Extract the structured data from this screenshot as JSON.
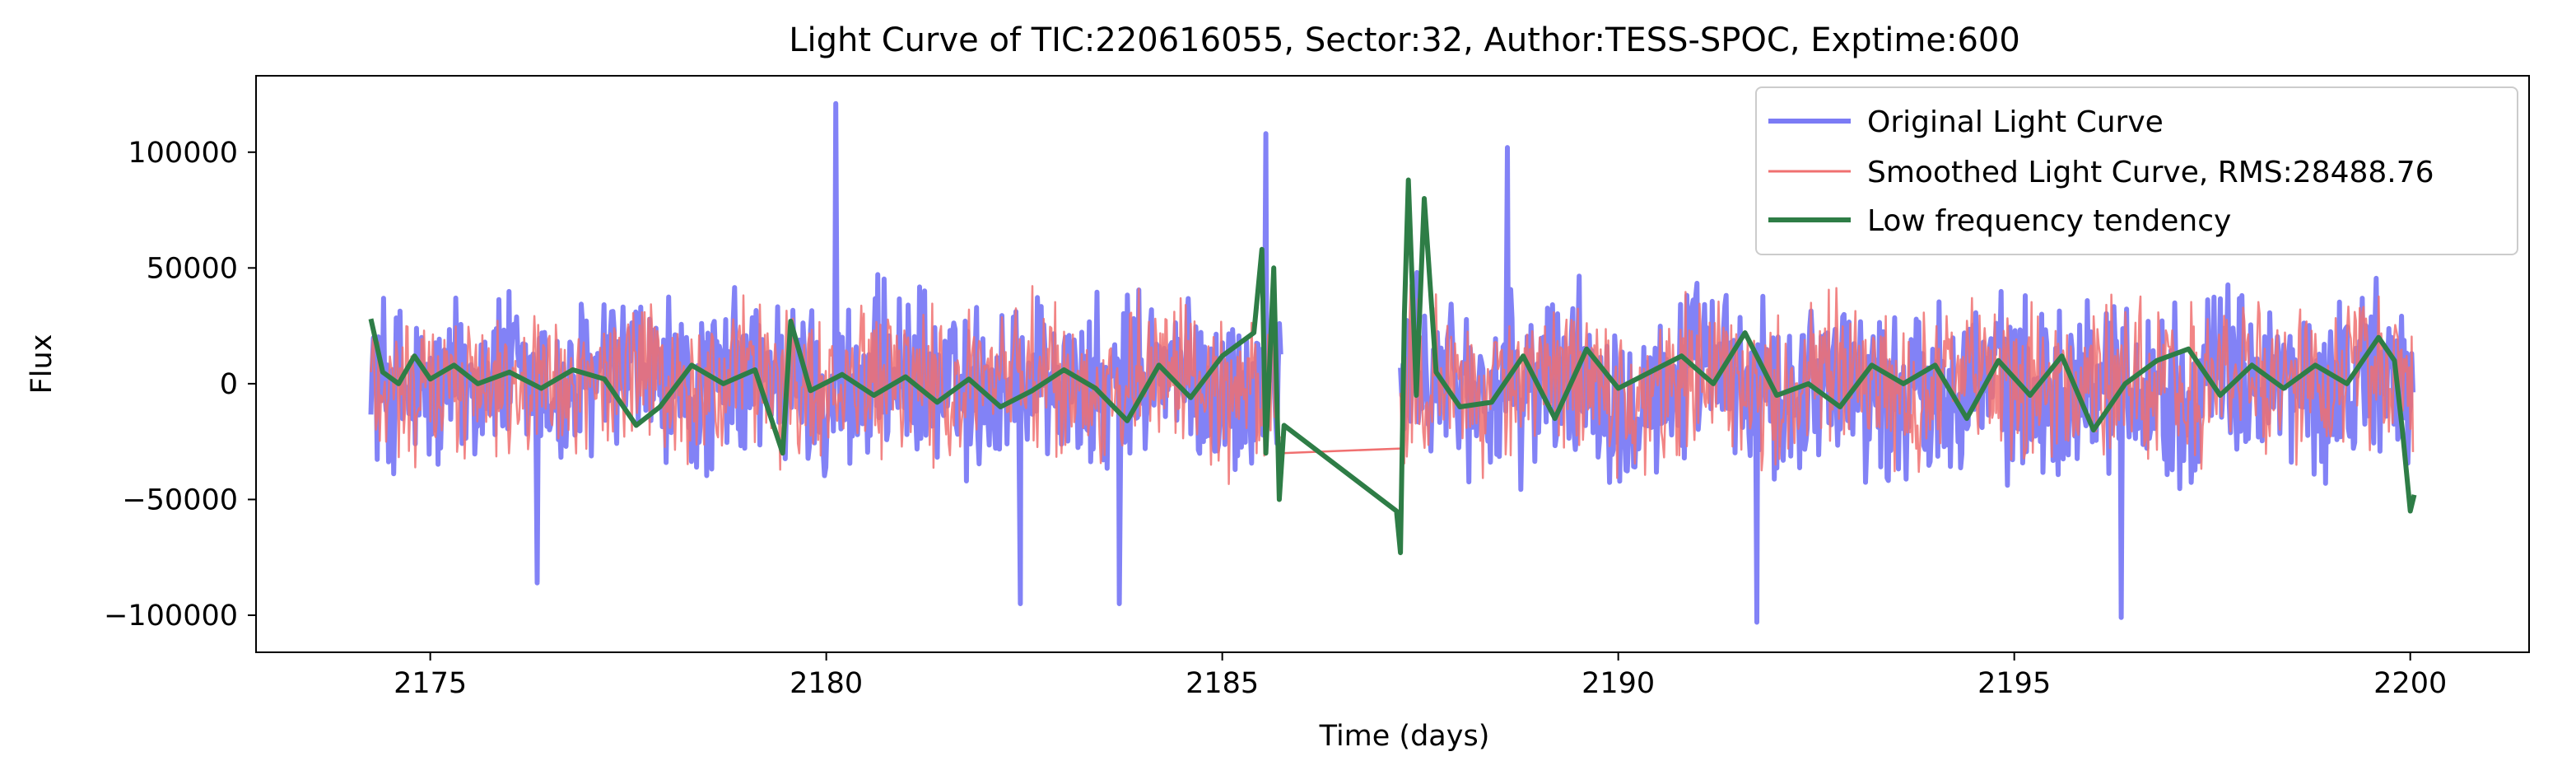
{
  "chart_data": {
    "type": "line",
    "title": "Light Curve of TIC:220616055, Sector:32, Author:TESS-SPOC, Exptime:600",
    "xlabel": "Time (days)",
    "ylabel": "Flux",
    "xlim": [
      2172.8,
      2201.5
    ],
    "ylim": [
      -116000,
      133000
    ],
    "xticks": [
      2175,
      2180,
      2185,
      2190,
      2195,
      2200
    ],
    "xtick_labels": [
      "2175",
      "2180",
      "2185",
      "2190",
      "2195",
      "2200"
    ],
    "yticks": [
      -100000,
      -50000,
      0,
      50000,
      100000
    ],
    "ytick_labels": [
      "−100000",
      "−50000",
      "0",
      "50000",
      "100000"
    ],
    "grid": false,
    "legend_position": "top-right",
    "segments": [
      [
        2174.25,
        2185.75
      ],
      [
        2187.25,
        2200.05
      ]
    ],
    "series": [
      {
        "name": "Original Light Curve",
        "color": "#7b7bf5",
        "style": "noisy-oscillation",
        "amplitude_typical": 38000,
        "max_points": [
          [
            2180.12,
            121000
          ],
          [
            2185.55,
            108000
          ],
          [
            2188.6,
            102000
          ]
        ],
        "min_points": [
          [
            2191.75,
            -103000
          ],
          [
            2196.35,
            -101000
          ],
          [
            2182.45,
            -95000
          ],
          [
            2183.7,
            -95000
          ],
          [
            2176.35,
            -86000
          ]
        ]
      },
      {
        "name": "Smoothed Light Curve, RMS:28488.76",
        "color": "#f07070",
        "style": "noisy-oscillation",
        "amplitude_typical": 34000,
        "gap_bridge": [
          [
            2185.75,
            -30000
          ],
          [
            2187.25,
            -28000
          ]
        ]
      },
      {
        "name": "Low frequency tendency",
        "color": "#2e7d46",
        "style": "smooth-trend",
        "points": [
          [
            2174.25,
            28000
          ],
          [
            2174.4,
            5000
          ],
          [
            2174.6,
            0
          ],
          [
            2174.8,
            12000
          ],
          [
            2175.0,
            2000
          ],
          [
            2175.3,
            8000
          ],
          [
            2175.6,
            0
          ],
          [
            2176.0,
            5000
          ],
          [
            2176.4,
            -2000
          ],
          [
            2176.8,
            6000
          ],
          [
            2177.2,
            2000
          ],
          [
            2177.6,
            -18000
          ],
          [
            2177.9,
            -10000
          ],
          [
            2178.3,
            8000
          ],
          [
            2178.7,
            0
          ],
          [
            2179.1,
            6000
          ],
          [
            2179.45,
            -30000
          ],
          [
            2179.55,
            27000
          ],
          [
            2179.8,
            -3000
          ],
          [
            2180.2,
            4000
          ],
          [
            2180.6,
            -5000
          ],
          [
            2181.0,
            3000
          ],
          [
            2181.4,
            -8000
          ],
          [
            2181.8,
            2000
          ],
          [
            2182.2,
            -10000
          ],
          [
            2182.6,
            -3000
          ],
          [
            2183.0,
            6000
          ],
          [
            2183.4,
            -2000
          ],
          [
            2183.8,
            -16000
          ],
          [
            2184.2,
            8000
          ],
          [
            2184.6,
            -6000
          ],
          [
            2185.0,
            12000
          ],
          [
            2185.4,
            22000
          ],
          [
            2185.5,
            58000
          ],
          [
            2185.55,
            -30000
          ],
          [
            2185.65,
            50000
          ],
          [
            2185.72,
            -50000
          ],
          [
            2185.78,
            -18000
          ],
          [
            2187.2,
            -55000
          ],
          [
            2187.25,
            -73000
          ],
          [
            2187.3,
            30000
          ],
          [
            2187.35,
            88000
          ],
          [
            2187.45,
            -5000
          ],
          [
            2187.55,
            80000
          ],
          [
            2187.7,
            5000
          ],
          [
            2188.0,
            -10000
          ],
          [
            2188.4,
            -8000
          ],
          [
            2188.8,
            12000
          ],
          [
            2189.2,
            -15000
          ],
          [
            2189.6,
            15000
          ],
          [
            2190.0,
            -2000
          ],
          [
            2190.4,
            5000
          ],
          [
            2190.8,
            12000
          ],
          [
            2191.2,
            0
          ],
          [
            2191.6,
            22000
          ],
          [
            2192.0,
            -5000
          ],
          [
            2192.4,
            0
          ],
          [
            2192.8,
            -10000
          ],
          [
            2193.2,
            8000
          ],
          [
            2193.6,
            0
          ],
          [
            2194.0,
            8000
          ],
          [
            2194.4,
            -15000
          ],
          [
            2194.8,
            10000
          ],
          [
            2195.2,
            -5000
          ],
          [
            2195.6,
            12000
          ],
          [
            2196.0,
            -20000
          ],
          [
            2196.4,
            0
          ],
          [
            2196.8,
            10000
          ],
          [
            2197.2,
            15000
          ],
          [
            2197.6,
            -5000
          ],
          [
            2198.0,
            8000
          ],
          [
            2198.4,
            -2000
          ],
          [
            2198.8,
            8000
          ],
          [
            2199.2,
            0
          ],
          [
            2199.6,
            20000
          ],
          [
            2199.8,
            10000
          ],
          [
            2199.9,
            -20000
          ],
          [
            2200.0,
            -55000
          ],
          [
            2200.05,
            -48000
          ]
        ]
      }
    ]
  }
}
